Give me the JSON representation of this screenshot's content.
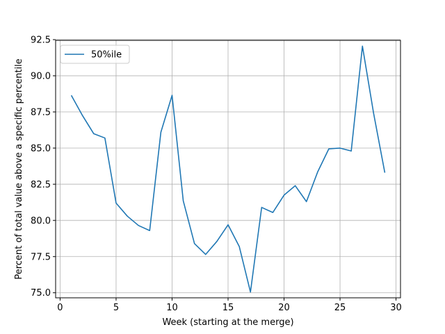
{
  "chart_data": {
    "type": "line",
    "title": "",
    "xlabel": "Week (starting at the merge)",
    "ylabel": "Percent of total value above a specific percentile",
    "xlim": [
      -0.4,
      30.4
    ],
    "ylim": [
      74.65,
      92.45
    ],
    "xticks": [
      0,
      5,
      10,
      15,
      20,
      25,
      30
    ],
    "xtick_labels": [
      "0",
      "5",
      "10",
      "15",
      "20",
      "25",
      "30"
    ],
    "yticks": [
      75.0,
      77.5,
      80.0,
      82.5,
      85.0,
      87.5,
      90.0,
      92.5
    ],
    "ytick_labels": [
      "75.0",
      "77.5",
      "80.0",
      "82.5",
      "85.0",
      "87.5",
      "90.0",
      "92.5"
    ],
    "grid": true,
    "legend_placement": "upper-left",
    "series": [
      {
        "name": "50%ile",
        "color": "#1f77b4",
        "x": [
          1,
          2,
          3,
          4,
          5,
          6,
          7,
          8,
          9,
          10,
          11,
          12,
          13,
          14,
          15,
          16,
          17,
          18,
          19,
          20,
          21,
          22,
          23,
          24,
          25,
          26,
          27,
          28,
          29
        ],
        "y": [
          88.65,
          87.25,
          86.0,
          85.7,
          81.2,
          80.3,
          79.65,
          79.3,
          86.1,
          88.65,
          81.35,
          78.4,
          77.65,
          78.55,
          79.7,
          78.2,
          75.05,
          80.9,
          80.55,
          81.75,
          82.4,
          81.3,
          83.35,
          84.95,
          85.0,
          84.8,
          92.05,
          87.4,
          83.3
        ]
      }
    ]
  }
}
